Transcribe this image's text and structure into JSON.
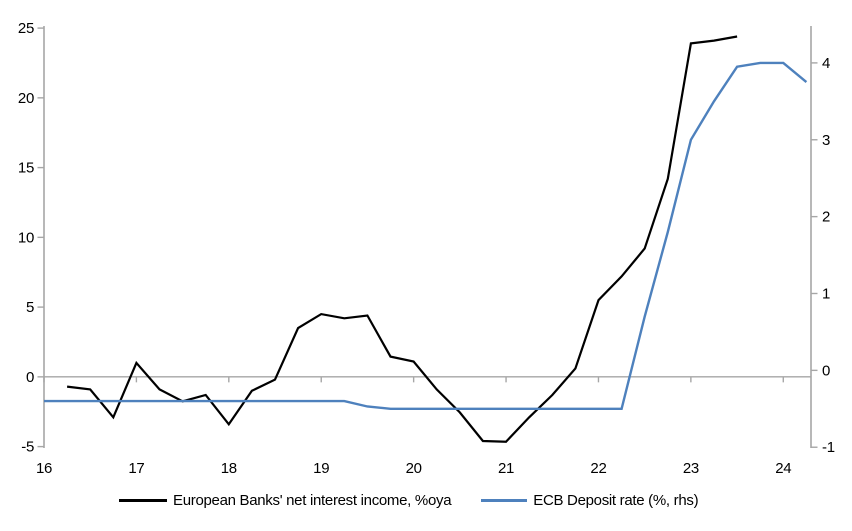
{
  "chart_data": {
    "type": "line",
    "title": "",
    "grid": "zero-line-only",
    "legend_position": "bottom",
    "x_axis": {
      "range": [
        16,
        24.3
      ],
      "ticks": [
        16,
        17,
        18,
        19,
        20,
        21,
        22,
        23,
        24
      ],
      "tick_labels": [
        "16",
        "17",
        "18",
        "19",
        "20",
        "21",
        "22",
        "23",
        "24"
      ]
    },
    "left_axis": {
      "range": [
        -5.1,
        25.15
      ],
      "ticks": [
        -5,
        0,
        5,
        10,
        15,
        20,
        25
      ],
      "tick_labels": [
        "-5",
        "0",
        "5",
        "10",
        "15",
        "20",
        "25"
      ]
    },
    "right_axis": {
      "range": [
        -1.01,
        4.48
      ],
      "ticks": [
        -1,
        0,
        1,
        2,
        3,
        4
      ],
      "tick_labels": [
        "-1",
        "0",
        "1",
        "2",
        "3",
        "4"
      ]
    },
    "series": [
      {
        "name": "European Banks' net interest income, %oya",
        "axis": "left",
        "color": "#000000",
        "x": [
          16.25,
          16.5,
          16.75,
          17.0,
          17.25,
          17.5,
          17.75,
          18.0,
          18.25,
          18.5,
          18.75,
          19.0,
          19.25,
          19.5,
          19.75,
          20.0,
          20.25,
          20.5,
          20.75,
          21.0,
          21.25,
          21.5,
          21.75,
          22.0,
          22.25,
          22.5,
          22.75,
          23.0,
          23.25,
          23.5
        ],
        "values": [
          -0.7,
          -0.9,
          -2.9,
          1.0,
          -0.9,
          -1.75,
          -1.3,
          -3.4,
          -1.0,
          -0.2,
          3.5,
          4.5,
          4.2,
          4.4,
          1.45,
          1.1,
          -0.9,
          -2.55,
          -4.6,
          -4.65,
          -2.9,
          -1.3,
          0.6,
          5.5,
          7.2,
          9.2,
          14.2,
          23.9,
          24.1,
          24.4
        ]
      },
      {
        "name": "ECB Deposit rate (%, rhs)",
        "axis": "right",
        "color": "#4e81bd",
        "x": [
          16.0,
          16.25,
          16.5,
          16.75,
          17.0,
          17.25,
          17.5,
          17.75,
          18.0,
          18.25,
          18.5,
          18.75,
          19.0,
          19.25,
          19.5,
          19.75,
          20.0,
          20.25,
          20.5,
          20.75,
          21.0,
          21.25,
          21.5,
          21.75,
          22.0,
          22.25,
          22.5,
          22.75,
          23.0,
          23.25,
          23.5,
          23.75,
          24.0,
          24.25
        ],
        "values": [
          -0.4,
          -0.4,
          -0.4,
          -0.4,
          -0.4,
          -0.4,
          -0.4,
          -0.4,
          -0.4,
          -0.4,
          -0.4,
          -0.4,
          -0.4,
          -0.4,
          -0.47,
          -0.5,
          -0.5,
          -0.5,
          -0.5,
          -0.5,
          -0.5,
          -0.5,
          -0.5,
          -0.5,
          -0.5,
          -0.5,
          0.7,
          1.8,
          3.0,
          3.5,
          3.95,
          4.0,
          4.0,
          3.75
        ]
      }
    ]
  },
  "colors": {
    "background": "#ffffff",
    "axis": "#a6a6a6",
    "zero_line": "#a6a6a6",
    "text": "#000000",
    "nii_line": "#000000",
    "ecb_line": "#4e81bd"
  }
}
